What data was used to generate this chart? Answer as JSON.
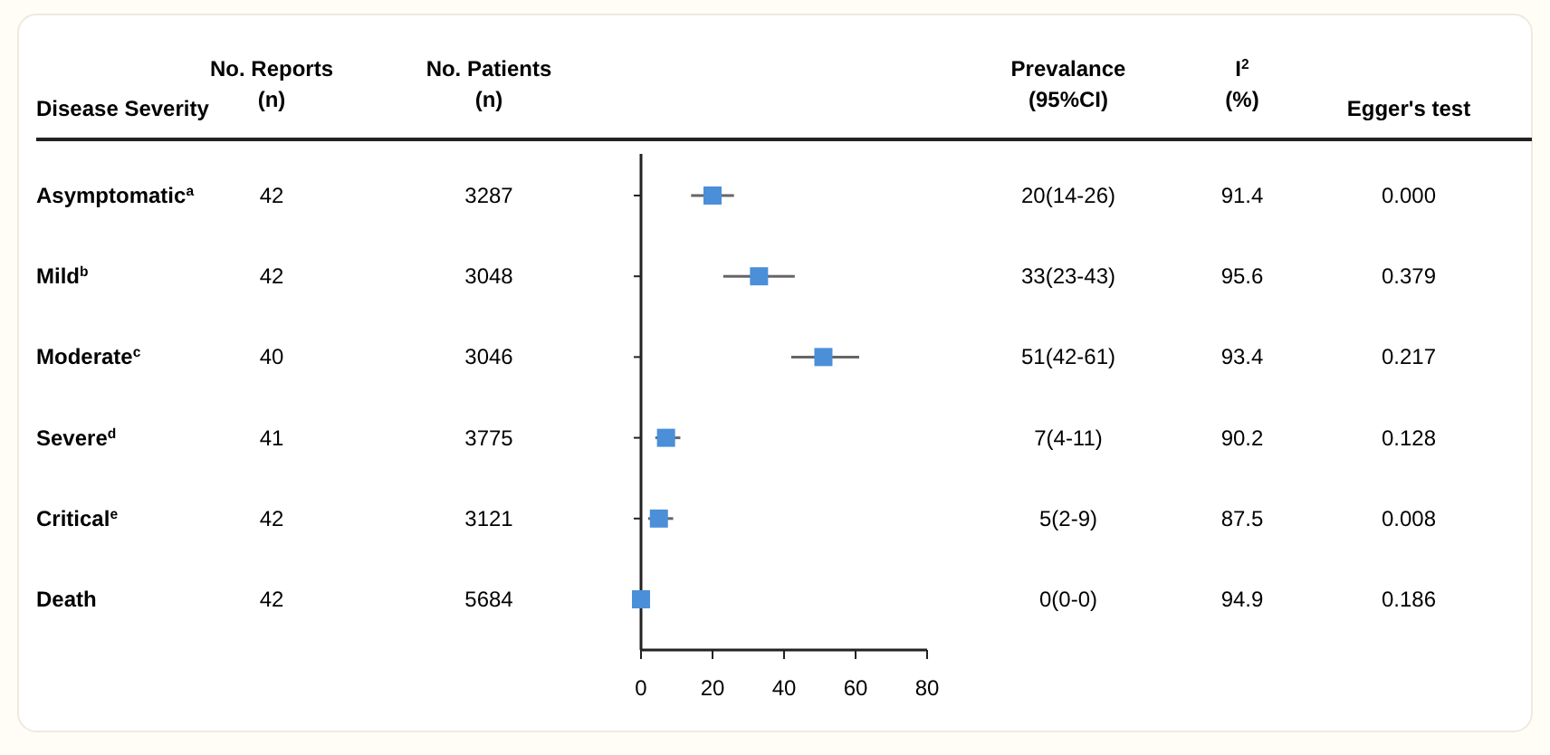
{
  "chart_data": {
    "type": "scatter",
    "orientation": "horizontal",
    "categories": [
      null,
      null,
      null,
      null,
      null,
      null
    ],
    "values": [
      20,
      33,
      51,
      7,
      5,
      0
    ],
    "errors": [
      [
        14,
        26
      ],
      [
        23,
        43
      ],
      [
        42,
        61
      ],
      [
        4,
        11
      ],
      [
        2,
        9
      ],
      [
        0,
        0
      ]
    ],
    "color": "#4a8fd8",
    "marker": "square",
    "grid": false,
    "xlim": [
      0,
      80
    ],
    "xticks": [
      0,
      20,
      40,
      60,
      80
    ],
    "annotations": [
      "Disease Severity",
      "No. Reports (n)",
      "No. Patients (n)",
      "Prevalance (95%CI)",
      "I$^{2}$ (%)",
      "Egger's test",
      "Asymptomatic$^{a}$",
      "42",
      "3287",
      "20(14-26)",
      "91.4",
      "0.000",
      "Mild$^{b}$",
      "42",
      "3048",
      "33(23-43)",
      "95.6",
      "0.379",
      "Moderate$^{c}$",
      "40",
      "3046",
      "51(42-61)",
      "93.4",
      "0.217",
      "Severe$^{d}$",
      "41",
      "3775",
      "7(4-11)",
      "90.2",
      "0.128",
      "Critical$^{e}$",
      "42",
      "3121",
      "5(2-9)",
      "87.5",
      "0.008",
      "Death",
      "42",
      "5684",
      "0(0-0)",
      "94.9",
      "0.186"
    ]
  }
}
